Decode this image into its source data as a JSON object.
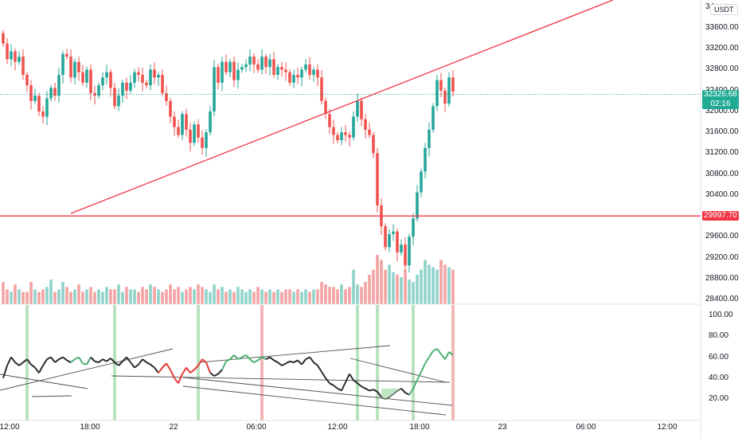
{
  "price_axis": {
    "currency": "USDT",
    "top_clipped_label": "34",
    "labels": [
      "33600.00",
      "33200.00",
      "32800.00",
      "32400.00",
      "32000.00",
      "31600.00",
      "31200.00",
      "30800.00",
      "30400.00",
      "29600.00",
      "29200.00",
      "28800.00",
      "28400.00"
    ]
  },
  "current_price": {
    "value": "32326.68",
    "countdown": "02:16"
  },
  "horizontal_level": {
    "value": "29997.70"
  },
  "oscillator_axis": {
    "labels": [
      "100.00",
      "80.00",
      "60.00",
      "40.00",
      "20.00"
    ]
  },
  "time_axis": {
    "labels": [
      "12:00",
      "18:00",
      "22",
      "06:00",
      "12:00",
      "18:00",
      "23",
      "06:00",
      "12:00"
    ]
  },
  "colors": {
    "up": "#26a69a",
    "down": "#ef5350",
    "vol_up": "#8fd3cb",
    "vol_down": "#f3a3a3",
    "trendline": "#f23645",
    "osc_neutral": "#2b2b2b",
    "osc_bull": "#4caf70",
    "osc_bear": "#e53935",
    "highlight_green": "#b9e2bf",
    "highlight_red": "#f3b6b6"
  },
  "chart_data": {
    "type": "candlestick",
    "candle_closes": [
      33300,
      33000,
      33150,
      32950,
      33050,
      32700,
      32500,
      32200,
      32300,
      32000,
      31900,
      32250,
      32450,
      32300,
      32700,
      33100,
      33050,
      32650,
      32950,
      32750,
      32550,
      32800,
      32350,
      32300,
      32500,
      32650,
      32750,
      32450,
      32100,
      32300,
      32550,
      32400,
      32550,
      32750,
      32700,
      32550,
      32500,
      32800,
      32650,
      32700,
      32350,
      32200,
      31900,
      31700,
      31550,
      31950,
      31650,
      31400,
      31750,
      31500,
      31300,
      31600,
      32000,
      32850,
      32550,
      32950,
      32750,
      32950,
      32600,
      32800,
      32850,
      32900,
      33050,
      32900,
      32800,
      33050,
      32850,
      33000,
      32700,
      32850,
      32800,
      32750,
      32550,
      32700,
      32650,
      32800,
      32900,
      32700,
      32800,
      32650,
      32200,
      31950,
      31700,
      31550,
      31450,
      31600,
      31550,
      31500,
      31900,
      32200,
      31850,
      31650,
      31550,
      31200,
      30200,
      29800,
      29400,
      29650,
      29700,
      29300,
      29450,
      29050,
      29600,
      29950,
      30450,
      30850,
      31300,
      31650,
      32100,
      32600,
      32400,
      32150,
      32650,
      32380
    ],
    "volume_index": [
      9,
      6,
      5,
      8,
      6,
      5,
      5,
      9,
      6,
      5,
      6,
      7,
      10,
      5,
      6,
      9,
      7,
      5,
      6,
      8,
      5,
      6,
      7,
      5,
      6,
      5,
      7,
      6,
      6,
      8,
      5,
      7,
      6,
      6,
      5,
      7,
      6,
      8,
      7,
      6,
      5,
      6,
      8,
      6,
      7,
      5,
      6,
      7,
      6,
      8,
      7,
      6,
      5,
      8,
      6,
      7,
      5,
      6,
      5,
      7,
      6,
      5,
      6,
      5,
      7,
      6,
      5,
      6,
      5,
      6,
      5,
      6,
      6,
      5,
      6,
      5,
      6,
      5,
      6,
      6,
      9,
      8,
      7,
      7,
      6,
      8,
      6,
      7,
      14,
      8,
      7,
      9,
      12,
      14,
      20,
      18,
      14,
      16,
      13,
      12,
      11,
      14,
      10,
      9,
      12,
      14,
      18,
      16,
      15,
      14,
      18,
      16,
      15,
      14
    ],
    "horizontal_levels": [
      29997.7
    ],
    "oscillator_range": [
      0,
      100
    ],
    "oscillator_values": [
      40,
      52,
      60,
      55,
      52,
      55,
      58,
      53,
      50,
      45,
      52,
      58,
      60,
      55,
      58,
      60,
      57,
      55,
      58,
      60,
      54,
      53,
      60,
      56,
      55,
      58,
      56,
      59,
      55,
      52,
      56,
      60,
      55,
      50,
      53,
      58,
      55,
      53,
      50,
      45,
      50,
      54,
      48,
      40,
      35,
      44,
      50,
      45,
      48,
      52,
      58,
      55,
      45,
      42,
      44,
      48,
      56,
      58,
      62,
      58,
      60,
      62,
      58,
      55,
      57,
      60,
      58,
      60,
      57,
      55,
      52,
      54,
      56,
      55,
      57,
      53,
      58,
      60,
      55,
      52,
      46,
      40,
      35,
      33,
      30,
      28,
      36,
      44,
      38,
      35,
      32,
      30,
      28,
      29,
      27,
      22,
      20,
      22,
      25,
      28,
      30,
      26,
      24,
      30,
      38,
      46,
      54,
      60,
      66,
      68,
      63,
      58,
      65,
      62
    ],
    "oscillator_levels": [
      20,
      40,
      60,
      80,
      100
    ],
    "highlight_green_bars": [
      6,
      28,
      49,
      89,
      94,
      103
    ],
    "highlight_red_bars": [
      65,
      113
    ]
  }
}
